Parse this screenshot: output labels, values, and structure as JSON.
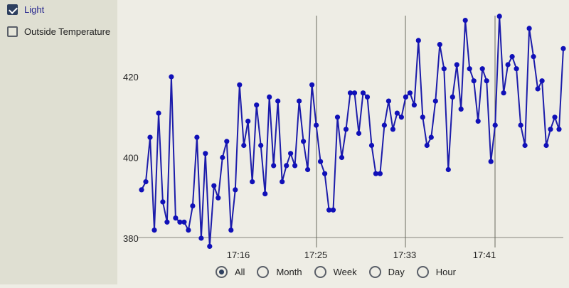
{
  "sidebar": {
    "series_toggles": [
      {
        "label": "Light",
        "checked": true
      },
      {
        "label": "Outside Temperature",
        "checked": false
      }
    ]
  },
  "range_selector": {
    "options": [
      {
        "label": "All",
        "selected": true
      },
      {
        "label": "Month",
        "selected": false
      },
      {
        "label": "Week",
        "selected": false
      },
      {
        "label": "Day",
        "selected": false
      },
      {
        "label": "Hour",
        "selected": false
      }
    ]
  },
  "colors": {
    "series": "#1c1caa",
    "series_marker": "#1010b8",
    "axis": "#888880",
    "background": "#eeede5",
    "sidebar": "#dfdfd2",
    "accent": "#2d3f5f"
  },
  "chart_data": {
    "type": "line",
    "title": "",
    "xlabel": "",
    "ylabel": "",
    "legend": [
      "Light"
    ],
    "ylim": [
      379,
      435
    ],
    "y_ticks": [
      380,
      400,
      420
    ],
    "x_ticks": [
      "17:16",
      "17:25",
      "17:33",
      "17:41"
    ],
    "grid": {
      "vertical_at_ticks": true,
      "horizontal": false
    },
    "series": [
      {
        "name": "Light",
        "values": [
          392,
          394,
          405,
          382,
          411,
          389,
          384,
          420,
          385,
          384,
          384,
          382,
          388,
          405,
          380,
          401,
          378,
          393,
          390,
          400,
          404,
          382,
          392,
          418,
          403,
          409,
          394,
          413,
          403,
          391,
          415,
          398,
          414,
          394,
          398,
          401,
          398,
          414,
          404,
          397,
          418,
          408,
          399,
          396,
          387,
          387,
          410,
          400,
          407,
          416,
          416,
          406,
          416,
          415,
          403,
          396,
          396,
          408,
          414,
          407,
          411,
          410,
          415,
          416,
          413,
          429,
          410,
          403,
          405,
          414,
          428,
          422,
          397,
          415,
          423,
          412,
          434,
          422,
          419,
          409,
          422,
          419,
          399,
          408,
          435,
          416,
          423,
          425,
          422,
          408,
          403,
          432,
          425,
          417,
          419,
          403,
          407,
          410,
          407,
          427
        ]
      }
    ]
  }
}
